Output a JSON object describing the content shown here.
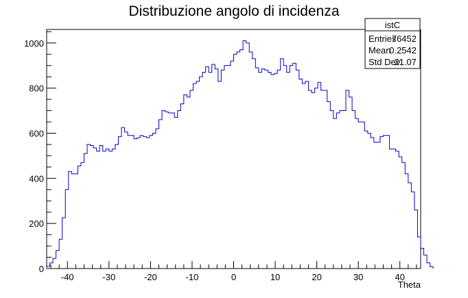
{
  "chart_data": {
    "type": "histogram",
    "title": "Distribuzione angolo di incidenza",
    "xlabel": "Theta",
    "ylabel": "",
    "xlim": [
      -45,
      45
    ],
    "ylim": [
      0,
      1060
    ],
    "bin_width": 0.75,
    "xticks": [
      -40,
      -30,
      -20,
      -10,
      0,
      10,
      20,
      30,
      40
    ],
    "yticks": [
      0,
      200,
      400,
      600,
      800,
      1000
    ],
    "line_color": "#0000cc",
    "values": [
      10,
      25,
      45,
      80,
      130,
      225,
      350,
      430,
      420,
      420,
      455,
      470,
      510,
      550,
      545,
      535,
      520,
      545,
      520,
      530,
      520,
      530,
      550,
      585,
      625,
      605,
      590,
      590,
      575,
      580,
      590,
      585,
      580,
      590,
      600,
      620,
      660,
      700,
      695,
      690,
      690,
      670,
      700,
      730,
      770,
      760,
      790,
      820,
      830,
      850,
      870,
      895,
      870,
      905,
      885,
      830,
      880,
      900,
      900,
      920,
      950,
      960,
      970,
      1010,
      1000,
      960,
      930,
      890,
      870,
      885,
      880,
      870,
      860,
      865,
      880,
      930,
      900,
      870,
      900,
      910,
      880,
      840,
      820,
      830,
      790,
      780,
      800,
      825,
      790,
      790,
      740,
      700,
      665,
      690,
      700,
      700,
      790,
      760,
      700,
      665,
      650,
      650,
      610,
      600,
      580,
      560,
      560,
      585,
      590,
      590,
      530,
      530,
      520,
      495,
      470,
      420,
      380,
      340,
      260,
      140,
      90,
      60,
      25,
      8
    ],
    "stats_box": {
      "name": "istC",
      "rows": [
        {
          "label": "Entries",
          "value": "76452"
        },
        {
          "label": "Mean",
          "value": "0.2542"
        },
        {
          "label": "Std Dev",
          "value": "21.07"
        }
      ]
    }
  }
}
